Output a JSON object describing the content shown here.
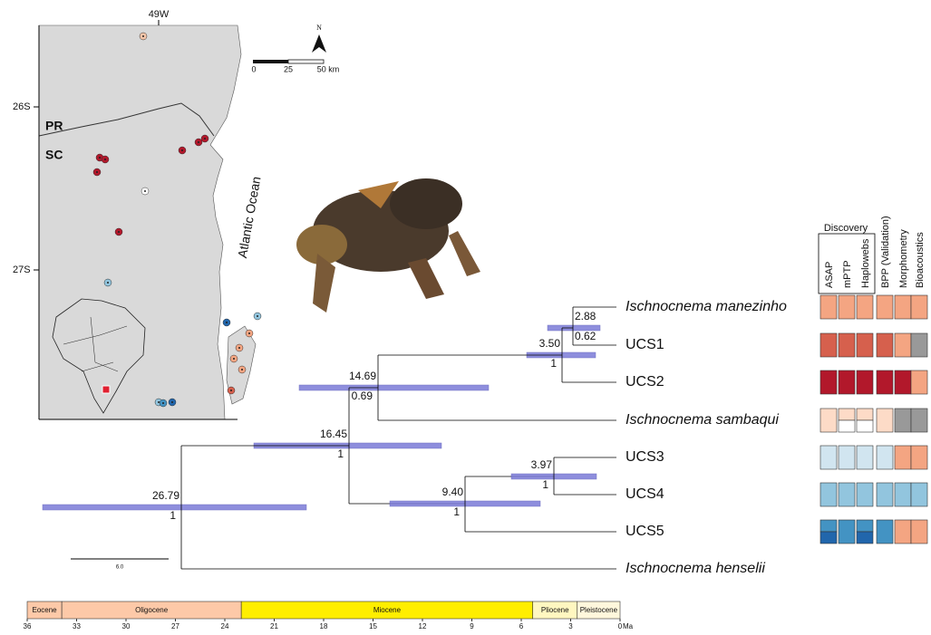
{
  "map": {
    "longitude_label": "49W",
    "latitude_labels": [
      "26S",
      "27S"
    ],
    "state_labels": [
      "PR",
      "SC"
    ],
    "ocean_label": "Atlantic Ocean",
    "north_label": "N",
    "scale_labels": [
      "0",
      "25",
      "50 km"
    ]
  },
  "tree": {
    "tips": [
      "Ischnocnema manezinho",
      "UCS1",
      "UCS2",
      "Ischnocnema sambaqui",
      "UCS3",
      "UCS4",
      "UCS5",
      "Ischnocnema henselii"
    ],
    "nodes": [
      {
        "age": "2.88",
        "support": "0.62"
      },
      {
        "age": "3.50",
        "support": "1"
      },
      {
        "age": "14.69",
        "support": "0.69"
      },
      {
        "age": "16.45",
        "support": "1"
      },
      {
        "age": "9.40",
        "support": "1"
      },
      {
        "age": "3.97",
        "support": "1"
      },
      {
        "age": "26.79",
        "support": "1"
      }
    ],
    "scale_label": "6.0"
  },
  "delimitation": {
    "group_label": "Discovery",
    "columns": [
      "ASAP",
      "mPTP",
      "Haplowebs",
      "BPP (Validation)",
      "Morphometry",
      "Bioacoustics"
    ]
  },
  "timescale": {
    "epochs": [
      "Eocene",
      "Oligocene",
      "Miocene",
      "Pliocene",
      "Pleistocene"
    ],
    "ticks": [
      36,
      33,
      30,
      27,
      24,
      21,
      18,
      15,
      12,
      9,
      6,
      3,
      0
    ],
    "unit": "Ma"
  }
}
